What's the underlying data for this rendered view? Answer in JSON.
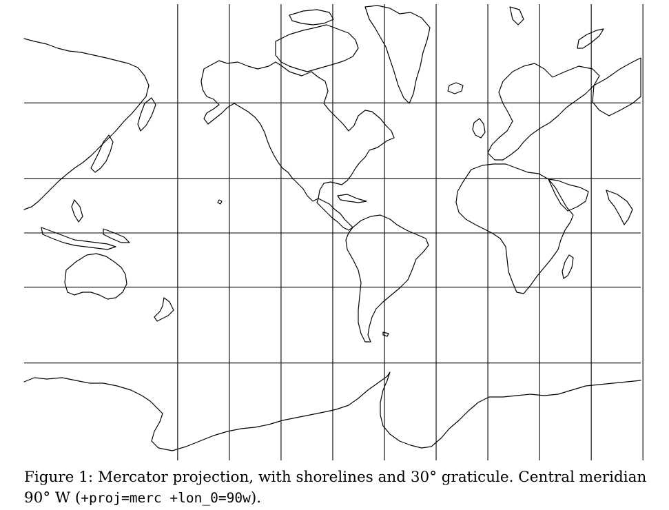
{
  "figure": {
    "caption_main": "Figure 1: Mercator projection, with shorelines and 30° graticule. Central meridian 90° W (",
    "caption_code": "+proj=merc +lon_0=90w",
    "caption_end": ")."
  },
  "map": {
    "projection": "Mercator",
    "central_meridian_deg": -90,
    "graticule_step_deg": 30,
    "graticule_longitudes": [
      -210,
      -180,
      -150,
      -120,
      -90,
      -60,
      -30,
      0,
      30,
      60,
      90,
      120
    ],
    "graticule_latitudes": [
      60,
      30,
      0,
      -30,
      -60
    ],
    "features": [
      "shorelines",
      "graticule"
    ],
    "colors": {
      "stroke": "#000000",
      "background": "#ffffff"
    }
  }
}
